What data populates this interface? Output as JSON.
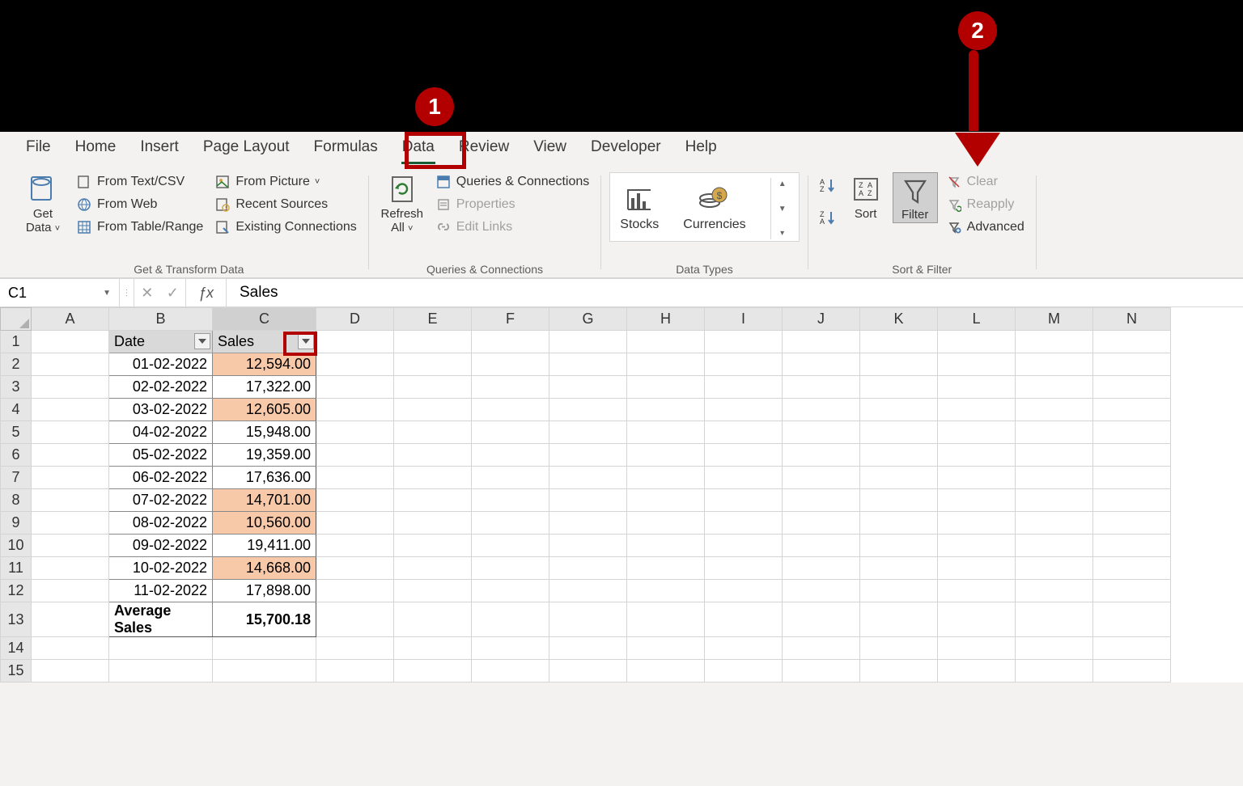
{
  "tabs": [
    "File",
    "Home",
    "Insert",
    "Page Layout",
    "Formulas",
    "Data",
    "Review",
    "View",
    "Developer",
    "Help"
  ],
  "active_tab_index": 5,
  "ribbon": {
    "get_data": "Get\nData",
    "g1": [
      "From Text/CSV",
      "From Web",
      "From Table/Range"
    ],
    "g1b": [
      "From Picture",
      "Recent Sources",
      "Existing Connections"
    ],
    "group1_label": "Get & Transform Data",
    "refresh": "Refresh\nAll",
    "g2": [
      "Queries & Connections",
      "Properties",
      "Edit Links"
    ],
    "group2_label": "Queries & Connections",
    "stocks": "Stocks",
    "currencies": "Currencies",
    "group3_label": "Data Types",
    "sort": "Sort",
    "filter": "Filter",
    "g4": [
      "Clear",
      "Reapply",
      "Advanced"
    ],
    "group4_label": "Sort & Filter"
  },
  "formula_bar": {
    "cell_ref": "C1",
    "value": "Sales"
  },
  "columns": [
    "A",
    "B",
    "C",
    "D",
    "E",
    "F",
    "G",
    "H",
    "I",
    "J",
    "K",
    "L",
    "M",
    "N"
  ],
  "wide_cols": [
    1,
    2
  ],
  "selected_col": 2,
  "row_count": 15,
  "table": {
    "b_header": "Date",
    "c_header": "Sales",
    "rows": [
      {
        "b": "01-02-2022",
        "c": "12,594.00",
        "hl": true
      },
      {
        "b": "02-02-2022",
        "c": "17,322.00",
        "hl": false
      },
      {
        "b": "03-02-2022",
        "c": "12,605.00",
        "hl": true
      },
      {
        "b": "04-02-2022",
        "c": "15,948.00",
        "hl": false
      },
      {
        "b": "05-02-2022",
        "c": "19,359.00",
        "hl": false
      },
      {
        "b": "06-02-2022",
        "c": "17,636.00",
        "hl": false
      },
      {
        "b": "07-02-2022",
        "c": "14,701.00",
        "hl": true
      },
      {
        "b": "08-02-2022",
        "c": "10,560.00",
        "hl": true
      },
      {
        "b": "09-02-2022",
        "c": "19,411.00",
        "hl": false
      },
      {
        "b": "10-02-2022",
        "c": "14,668.00",
        "hl": true
      },
      {
        "b": "11-02-2022",
        "c": "17,898.00",
        "hl": false
      }
    ],
    "total_label": "Average Sales",
    "total_value": "15,700.18"
  },
  "callouts": {
    "one": "1",
    "two": "2"
  },
  "colors": {
    "accent": "#b20000",
    "excel_green": "#185c37",
    "hl_cell": "#f8c9a9"
  }
}
